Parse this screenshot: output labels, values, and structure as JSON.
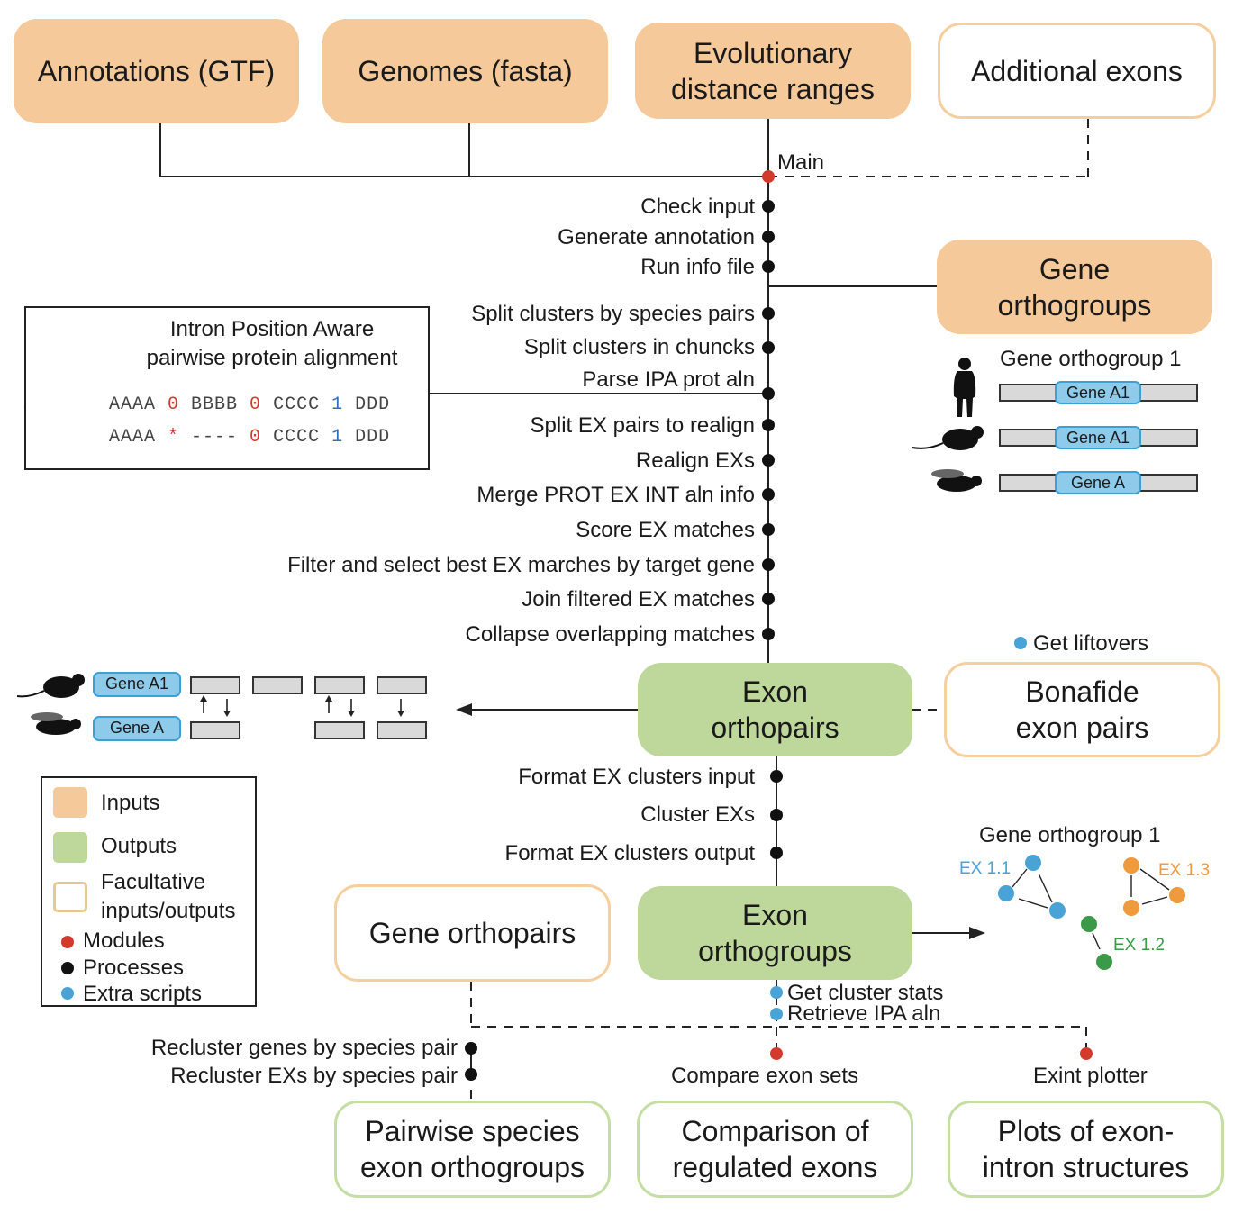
{
  "colors": {
    "inputs": "#f5c999",
    "outputs": "#bdd89a",
    "modules": "#d33a2c",
    "processes": "#111111",
    "extra_scripts": "#4aa3d6"
  },
  "inputs": {
    "annotations": "Annotations (GTF)",
    "genomes": "Genomes (fasta)",
    "evo_distance": "Evolutionary\ndistance ranges",
    "additional_exons": "Additional exons",
    "gene_orthogroups": "Gene\northogroups"
  },
  "main_module": "Main",
  "steps_top": [
    "Check input",
    "Generate annotation",
    "Run info file"
  ],
  "steps_mid": [
    "Split clusters by species pairs",
    "Split clusters in chuncks",
    "Parse IPA prot aln",
    "Split EX pairs to realign",
    "Realign EXs",
    "Merge PROT EX INT aln info",
    "Score EX matches",
    "Filter and select best EX marches by target gene",
    "Join filtered EX matches",
    "Collapse overlapping matches"
  ],
  "ipa_box": {
    "title": "Intron Position Aware\npairwise protein alignment",
    "row1": [
      "AAAA ",
      "0",
      " BBBB ",
      "0",
      " CCCC ",
      "1",
      " DDD"
    ],
    "row2": [
      "AAAA ",
      "*",
      " ---- ",
      "0",
      " CCCC ",
      "1",
      " DDD"
    ]
  },
  "gene_orthogroup_example": {
    "title": "Gene orthogroup 1",
    "genes": [
      "Gene A1",
      "Gene A1",
      "Gene A"
    ]
  },
  "get_liftovers": "Get liftovers",
  "exon_orthopairs": "Exon\northopairs",
  "bonafide": "Bonafide\nexon pairs",
  "exon_pairs_example": {
    "genes": [
      "Gene A1",
      "Gene A"
    ]
  },
  "steps_cluster": [
    "Format EX clusters input",
    "Cluster EXs",
    "Format EX clusters output"
  ],
  "gene_orthopairs": "Gene orthopairs",
  "exon_orthogroups": "Exon\northogroups",
  "cluster_example": {
    "title": "Gene orthogroup 1",
    "ex1": "EX 1.1",
    "ex2": "EX 1.2",
    "ex3": "EX 1.3"
  },
  "extra_scripts": [
    "Get cluster stats",
    "Retrieve IPA aln"
  ],
  "recluster": [
    "Recluster genes by species pair",
    "Recluster EXs by species pair"
  ],
  "modules_bottom": [
    "Compare exon sets",
    "Exint plotter"
  ],
  "outputs_bottom": [
    "Pairwise species\nexon orthogroups",
    "Comparison of\nregulated exons",
    "Plots of exon-\nintron structures"
  ],
  "legend": [
    "Inputs",
    "Outputs",
    "Facultative\ninputs/outputs",
    "Modules",
    "Processes",
    "Extra scripts"
  ]
}
